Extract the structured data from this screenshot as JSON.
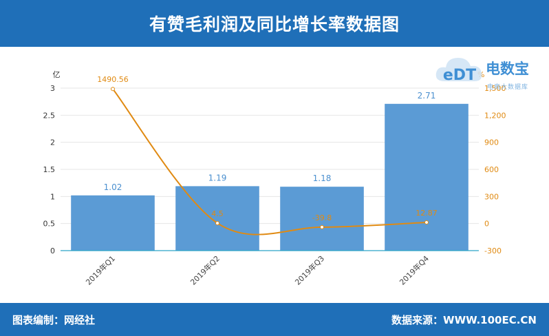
{
  "header": {
    "title": "有赞毛利润及同比增长率数据图"
  },
  "footer": {
    "credit": "图表编制：网经社",
    "source": "数据来源：WWW.100EC.CN"
  },
  "logo": {
    "name": "电数宝",
    "sub": "电商大数据库",
    "mark": "eDT"
  },
  "colors": {
    "header_bg": "#1f6fb8",
    "bar": "#5b9bd5",
    "line": "#e08a12",
    "axis_left": "#333333",
    "axis_right": "#e08a12"
  },
  "chart_data": {
    "type": "bar",
    "categories": [
      "2019年Q1",
      "2019年Q2",
      "2019年Q3",
      "2019年Q4"
    ],
    "series": [
      {
        "type": "bar",
        "axis": "left",
        "values": [
          1.02,
          1.19,
          1.18,
          2.71
        ],
        "labels": [
          "1.02",
          "1.19",
          "1.18",
          "2.71"
        ]
      },
      {
        "type": "line",
        "axis": "right",
        "values": [
          1490.56,
          4.5,
          -39.8,
          12.87
        ],
        "labels": [
          "1490.56",
          "4.5",
          "-39.8",
          "12.87"
        ]
      }
    ],
    "y_left": {
      "unit": "亿",
      "ylim": [
        0,
        3
      ],
      "ticks": [
        "0",
        "0.5",
        "1",
        "1.5",
        "2",
        "2.5",
        "3"
      ]
    },
    "y_right": {
      "unit": "%",
      "ylim": [
        -300,
        1500
      ],
      "ticks": [
        "-300",
        "0",
        "300",
        "600",
        "900",
        "1,200",
        "1,500"
      ]
    },
    "grid": true
  }
}
